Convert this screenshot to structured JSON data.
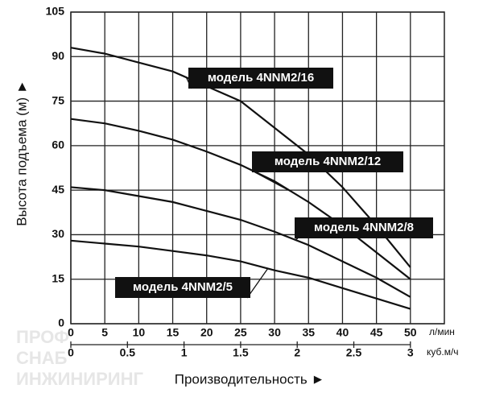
{
  "chart_data": {
    "type": "line",
    "y_label": "Высота подъема (м) ►",
    "x_label": "Производительность ►",
    "x_unit": "л/мин",
    "x2_unit": "куб.м/ч",
    "watermark": [
      "ПРОФ",
      "СНАБ",
      "ИНЖИНИРИНГ"
    ],
    "x": [
      0,
      5,
      10,
      15,
      20,
      25,
      30,
      35,
      40,
      45,
      50
    ],
    "xlim": [
      0,
      55
    ],
    "xticks": [
      0,
      5,
      10,
      15,
      20,
      25,
      30,
      35,
      40,
      45,
      50
    ],
    "x2lim": [
      0,
      3.3
    ],
    "x2ticks": [
      0,
      0.5,
      1,
      1.5,
      2,
      2.5,
      3
    ],
    "ylim": [
      0,
      105
    ],
    "yticks": [
      0,
      15,
      30,
      45,
      60,
      75,
      90,
      105
    ],
    "grid": true,
    "series": [
      {
        "name": "модель 4NNM2/16",
        "color": "#111111",
        "values": [
          93,
          91,
          88,
          85,
          80,
          75,
          66,
          57,
          46,
          33,
          19
        ]
      },
      {
        "name": "модель 4NNM2/12",
        "color": "#111111",
        "values": [
          69,
          67.5,
          65,
          62,
          58,
          53.5,
          48,
          41,
          33,
          24,
          15
        ]
      },
      {
        "name": "модель 4NNM2/8",
        "color": "#111111",
        "values": [
          46,
          45,
          43,
          41,
          38,
          35,
          31,
          26.5,
          21,
          15.5,
          9
        ]
      },
      {
        "name": "модель 4NNM2/5",
        "color": "#111111",
        "values": [
          28,
          27,
          26,
          24.5,
          23,
          21,
          18,
          15.5,
          12,
          8.5,
          5
        ]
      }
    ]
  }
}
